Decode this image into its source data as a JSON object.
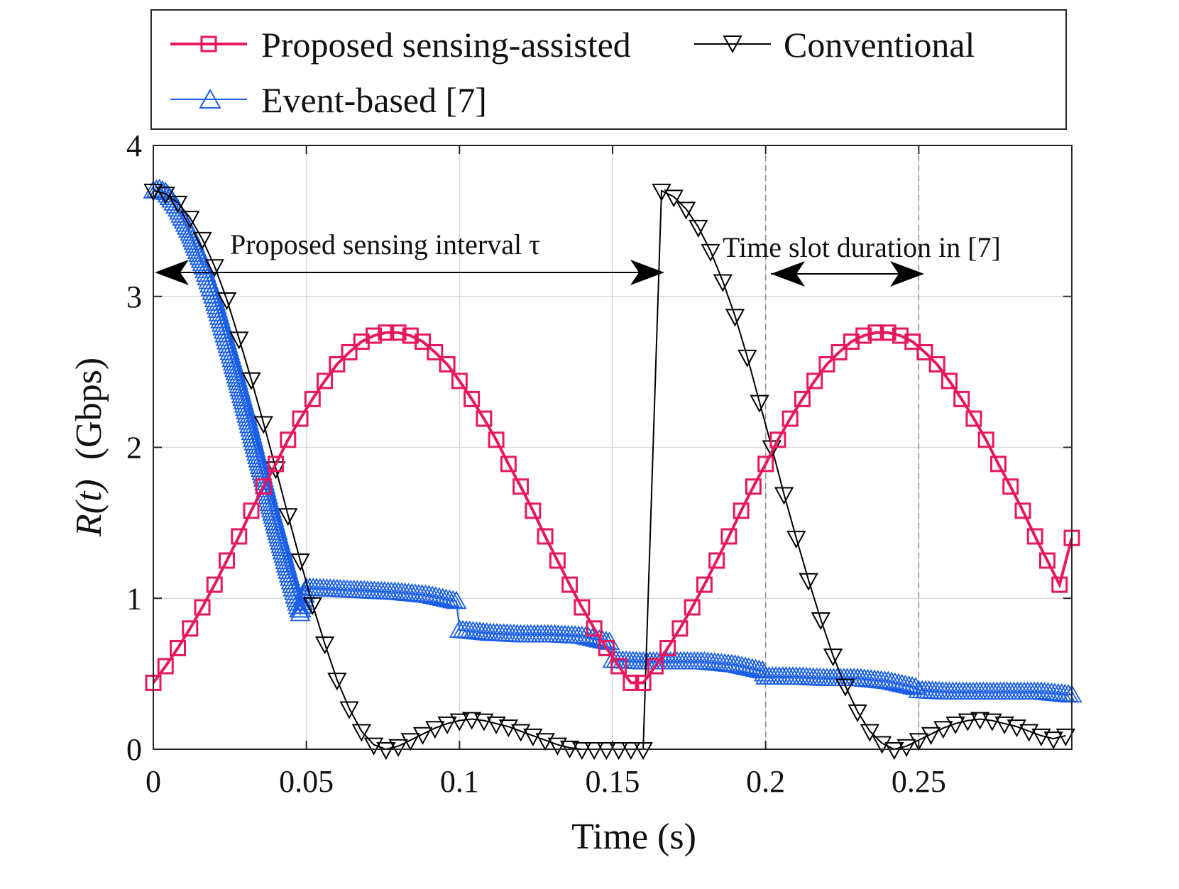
{
  "colors": {
    "proposed": "#e8175d",
    "conventional": "#000000",
    "event": "#1a5fe6",
    "grid": "#d9d9d9",
    "axis": "#262626"
  },
  "chart_data": {
    "type": "line",
    "title": "",
    "xlabel": "Time (s)",
    "ylabel_italic": "R(t)",
    "ylabel_unit": "(Gbps)",
    "xlim": [
      0,
      0.3
    ],
    "ylim": [
      0,
      4
    ],
    "xticks": [
      0,
      0.05,
      0.1,
      0.15,
      0.2,
      0.25
    ],
    "xtick_labels": [
      "0",
      "0.05",
      "0.1",
      "0.15",
      "0.2",
      "0.25"
    ],
    "yticks": [
      0,
      1,
      2,
      3,
      4
    ],
    "ytick_labels": [
      "0",
      "1",
      "2",
      "3",
      "4"
    ],
    "grid": true,
    "legend_position": "top",
    "legend": {
      "proposed": "Proposed sensing-assisted",
      "conventional": "Conventional",
      "event": "Event-based [7]"
    },
    "annotations": {
      "sensing_interval": "Proposed sensing interval τ",
      "slot_duration": "Time slot duration in [7]"
    },
    "series": [
      {
        "name": "Proposed sensing-assisted",
        "key": "proposed",
        "marker": "square",
        "x": [
          0.0,
          0.004,
          0.008,
          0.012,
          0.016,
          0.02,
          0.024,
          0.028,
          0.032,
          0.036,
          0.04,
          0.044,
          0.048,
          0.052,
          0.056,
          0.06,
          0.064,
          0.068,
          0.072,
          0.076,
          0.08,
          0.084,
          0.088,
          0.092,
          0.096,
          0.1,
          0.104,
          0.108,
          0.112,
          0.116,
          0.12,
          0.124,
          0.128,
          0.132,
          0.136,
          0.14,
          0.144,
          0.148,
          0.152,
          0.156,
          0.16,
          0.164,
          0.168,
          0.172,
          0.176,
          0.18,
          0.184,
          0.188,
          0.192,
          0.196,
          0.2,
          0.204,
          0.208,
          0.212,
          0.216,
          0.22,
          0.224,
          0.228,
          0.232,
          0.236,
          0.24,
          0.244,
          0.248,
          0.252,
          0.256,
          0.26,
          0.264,
          0.268,
          0.272,
          0.276,
          0.28,
          0.284,
          0.288,
          0.292,
          0.296,
          0.3
        ],
        "y": [
          0.44,
          0.55,
          0.67,
          0.8,
          0.94,
          1.09,
          1.25,
          1.41,
          1.58,
          1.74,
          1.89,
          2.05,
          2.19,
          2.32,
          2.44,
          2.55,
          2.63,
          2.7,
          2.74,
          2.76,
          2.76,
          2.74,
          2.7,
          2.63,
          2.55,
          2.44,
          2.32,
          2.19,
          2.05,
          1.89,
          1.74,
          1.58,
          1.41,
          1.25,
          1.09,
          0.94,
          0.8,
          0.67,
          0.55,
          0.44,
          0.44,
          0.55,
          0.67,
          0.8,
          0.94,
          1.09,
          1.25,
          1.41,
          1.58,
          1.74,
          1.89,
          2.05,
          2.19,
          2.32,
          2.44,
          2.55,
          2.63,
          2.7,
          2.74,
          2.76,
          2.76,
          2.74,
          2.7,
          2.63,
          2.55,
          2.44,
          2.32,
          2.19,
          2.05,
          1.89,
          1.74,
          1.58,
          1.41,
          1.25,
          1.09,
          1.4
        ]
      },
      {
        "name": "Conventional",
        "key": "conventional",
        "marker": "triangle-down",
        "x": [
          0.0,
          0.004,
          0.008,
          0.012,
          0.016,
          0.02,
          0.024,
          0.028,
          0.032,
          0.036,
          0.04,
          0.044,
          0.048,
          0.052,
          0.056,
          0.06,
          0.064,
          0.068,
          0.072,
          0.076,
          0.08,
          0.084,
          0.088,
          0.092,
          0.096,
          0.1,
          0.104,
          0.108,
          0.112,
          0.116,
          0.12,
          0.124,
          0.128,
          0.132,
          0.136,
          0.14,
          0.144,
          0.148,
          0.152,
          0.156,
          0.16,
          0.166,
          0.17,
          0.174,
          0.178,
          0.182,
          0.186,
          0.19,
          0.194,
          0.198,
          0.202,
          0.206,
          0.21,
          0.214,
          0.218,
          0.222,
          0.226,
          0.23,
          0.234,
          0.238,
          0.242,
          0.246,
          0.25,
          0.254,
          0.258,
          0.262,
          0.266,
          0.27,
          0.274,
          0.278,
          0.282,
          0.286,
          0.29,
          0.294,
          0.298
        ],
        "y": [
          3.7,
          3.68,
          3.62,
          3.52,
          3.38,
          3.2,
          2.98,
          2.72,
          2.45,
          2.16,
          1.86,
          1.55,
          1.25,
          0.96,
          0.7,
          0.46,
          0.27,
          0.12,
          0.03,
          0.0,
          0.02,
          0.06,
          0.1,
          0.14,
          0.17,
          0.19,
          0.2,
          0.19,
          0.17,
          0.15,
          0.12,
          0.09,
          0.06,
          0.03,
          0.01,
          0.0,
          0.0,
          0.0,
          0.0,
          0.0,
          0.0,
          3.7,
          3.66,
          3.58,
          3.46,
          3.3,
          3.1,
          2.87,
          2.6,
          2.3,
          2.0,
          1.69,
          1.4,
          1.12,
          0.86,
          0.62,
          0.42,
          0.25,
          0.12,
          0.04,
          0.0,
          0.02,
          0.06,
          0.1,
          0.14,
          0.17,
          0.19,
          0.2,
          0.19,
          0.17,
          0.15,
          0.12,
          0.09,
          0.07,
          0.09
        ]
      },
      {
        "name": "Event-based [7]",
        "key": "event",
        "marker": "triangle-up",
        "x": [
          0.0,
          0.002,
          0.004,
          0.006,
          0.008,
          0.01,
          0.012,
          0.014,
          0.016,
          0.018,
          0.02,
          0.022,
          0.024,
          0.026,
          0.028,
          0.03,
          0.032,
          0.034,
          0.036,
          0.038,
          0.04,
          0.042,
          0.044,
          0.046,
          0.048,
          0.05,
          0.06,
          0.07,
          0.08,
          0.09,
          0.099,
          0.1,
          0.11,
          0.12,
          0.13,
          0.14,
          0.149,
          0.15,
          0.16,
          0.17,
          0.18,
          0.19,
          0.199,
          0.2,
          0.21,
          0.22,
          0.23,
          0.24,
          0.249,
          0.25,
          0.26,
          0.27,
          0.28,
          0.29,
          0.3
        ],
        "y": [
          3.7,
          3.71,
          3.69,
          3.64,
          3.58,
          3.5,
          3.42,
          3.32,
          3.22,
          3.1,
          2.98,
          2.84,
          2.7,
          2.56,
          2.41,
          2.26,
          2.1,
          1.94,
          1.79,
          1.63,
          1.48,
          1.33,
          1.18,
          1.04,
          0.9,
          1.07,
          1.06,
          1.05,
          1.04,
          1.02,
          0.98,
          0.79,
          0.77,
          0.76,
          0.76,
          0.75,
          0.71,
          0.59,
          0.58,
          0.58,
          0.58,
          0.56,
          0.52,
          0.48,
          0.48,
          0.47,
          0.47,
          0.45,
          0.41,
          0.39,
          0.38,
          0.38,
          0.38,
          0.38,
          0.36
        ]
      }
    ]
  }
}
